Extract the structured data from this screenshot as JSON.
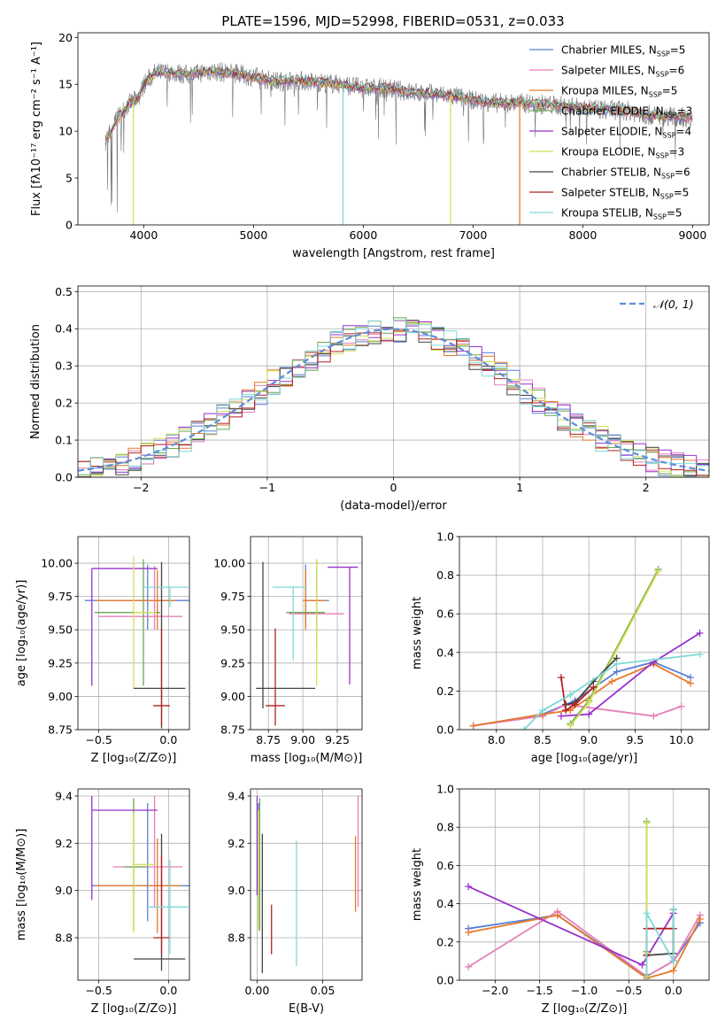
{
  "chart_data": [
    {
      "id": "spectrum",
      "type": "line",
      "title": "PLATE=1596, MJD=52998, FIBERID=0531, z=0.033",
      "xlabel": "wavelength [Angstrom, rest frame]",
      "ylabel": "Flux [fλ10⁻¹⁷ erg cm⁻² s⁻¹ A⁻¹]",
      "xlim": [
        3400,
        9150
      ],
      "ylim": [
        0,
        20.5
      ],
      "xticks": [
        4000,
        5000,
        6000,
        7000,
        8000,
        9000
      ],
      "yticks": [
        0,
        5,
        10,
        15,
        20
      ],
      "grid": false,
      "legend_position": "top-right",
      "legend": [
        {
          "main": "Chabrier MILES, N",
          "sub": "SSP",
          "tail": "=5",
          "color": "#5b7fd4"
        },
        {
          "main": "Salpeter MILES, N",
          "sub": "SSP",
          "tail": "=6",
          "color": "#e67fb9"
        },
        {
          "main": "Kroupa MILES, N",
          "sub": "SSP",
          "tail": "=5",
          "color": "#e67a2c"
        },
        {
          "main": "Chabrier ELODIE, N",
          "sub": "SSP",
          "tail": "=3",
          "color": "#6aa84f"
        },
        {
          "main": "Salpeter ELODIE, N",
          "sub": "SSP",
          "tail": "=4",
          "color": "#9932cc"
        },
        {
          "main": "Kroupa ELODIE, N",
          "sub": "SSP",
          "tail": "=3",
          "color": "#d4e157"
        },
        {
          "main": "Chabrier STELIB, N",
          "sub": "SSP",
          "tail": "=6",
          "color": "#444444"
        },
        {
          "main": "Salpeter STELIB, N",
          "sub": "SSP",
          "tail": "=5",
          "color": "#b22222"
        },
        {
          "main": "Kroupa STELIB, N",
          "sub": "SSP",
          "tail": "=5",
          "color": "#7fd8d8"
        }
      ],
      "continuum": [
        [
          3650,
          9.0
        ],
        [
          3750,
          11.2
        ],
        [
          3850,
          12.8
        ],
        [
          3950,
          13.5
        ],
        [
          4000,
          15.0
        ],
        [
          4100,
          16.2
        ],
        [
          4250,
          16.3
        ],
        [
          4400,
          16.0
        ],
        [
          4600,
          16.4
        ],
        [
          4800,
          16.2
        ],
        [
          5000,
          15.8
        ],
        [
          5200,
          15.3
        ],
        [
          5400,
          15.4
        ],
        [
          5600,
          15.2
        ],
        [
          5800,
          15.0
        ],
        [
          6000,
          14.6
        ],
        [
          6200,
          14.6
        ],
        [
          6400,
          14.2
        ],
        [
          6600,
          14.0
        ],
        [
          6800,
          13.8
        ],
        [
          7000,
          13.3
        ],
        [
          7200,
          13.0
        ],
        [
          7400,
          13.0
        ],
        [
          7600,
          12.9
        ],
        [
          7800,
          12.7
        ],
        [
          8000,
          12.5
        ],
        [
          8200,
          12.3
        ],
        [
          8400,
          12.2
        ],
        [
          8600,
          11.7
        ],
        [
          8800,
          11.6
        ],
        [
          9000,
          11.4
        ]
      ],
      "dropouts": [
        {
          "x": 3905,
          "color": "#d4e157"
        },
        {
          "x": 5815,
          "color": "#7fd8d8"
        },
        {
          "x": 6795,
          "color": "#d4e157"
        },
        {
          "x": 7425,
          "color": "#e67a2c"
        }
      ]
    },
    {
      "id": "residuals",
      "type": "step",
      "xlabel": "(data-model)/error",
      "ylabel": "Normed distribution",
      "xlim": [
        -2.5,
        2.5
      ],
      "ylim": [
        0,
        0.515
      ],
      "xticks": [
        -2,
        -1,
        0,
        1,
        2
      ],
      "yticks": [
        0.0,
        0.1,
        0.2,
        0.3,
        0.4,
        0.5
      ],
      "grid": true,
      "legend_position": "top-right",
      "legend": [
        {
          "label": "𝒩(0, 1)",
          "color": "#5b8fd8"
        }
      ],
      "bin_width": 0.1
    },
    {
      "id": "age_vs_Z",
      "type": "errorbar",
      "xlabel": "Z [log₁₀(Z/Z⊙)]",
      "ylabel": "age  [log₁₀(age/yr)]",
      "xlim": [
        -0.65,
        0.15
      ],
      "ylim": [
        8.75,
        10.2
      ],
      "xticks": [
        -0.5,
        0.0
      ],
      "yticks": [
        8.75,
        9.0,
        9.25,
        9.5,
        9.75,
        10.0
      ],
      "grid": true,
      "points": [
        {
          "x": -0.15,
          "y": 9.72,
          "xerr": [
            0.45,
            0.37
          ],
          "yerr": [
            0.22,
            0.27
          ],
          "color": "#5b7fd4"
        },
        {
          "x": -0.1,
          "y": 9.6,
          "xerr": [
            0.4,
            0.2
          ],
          "yerr": [
            0.1,
            0.38
          ],
          "color": "#e67fb9"
        },
        {
          "x": -0.08,
          "y": 9.72,
          "xerr": [
            0.44,
            0.13
          ],
          "yerr": [
            0.22,
            0.23
          ],
          "color": "#e67a2c"
        },
        {
          "x": -0.18,
          "y": 9.63,
          "xerr": [
            0.35,
            0.12
          ],
          "yerr": [
            0.55,
            0.4
          ],
          "color": "#6aa84f"
        },
        {
          "x": -0.55,
          "y": 9.96,
          "xerr": [
            0.0,
            0.47
          ],
          "yerr": [
            0.88,
            0.0
          ],
          "color": "#9932cc"
        },
        {
          "x": -0.25,
          "y": 9.63,
          "xerr": [
            0.0,
            0.16
          ],
          "yerr": [
            0.57,
            0.42
          ],
          "color": "#d4e157"
        },
        {
          "x": -0.05,
          "y": 9.06,
          "xerr": [
            0.2,
            0.17
          ],
          "yerr": [
            0.3,
            0.95
          ],
          "color": "#444444"
        },
        {
          "x": -0.05,
          "y": 8.93,
          "xerr": [
            0.06,
            0.06
          ],
          "yerr": [
            0.15,
            0.58
          ],
          "color": "#b22222"
        },
        {
          "x": 0.01,
          "y": 9.82,
          "xerr": [
            0.2,
            0.13
          ],
          "yerr": [
            0.15,
            0.0
          ],
          "color": "#7fd8d8"
        }
      ]
    },
    {
      "id": "age_vs_mass",
      "type": "errorbar",
      "xlabel": "mass [log₁₀(M/M⊙)]",
      "ylabel": "",
      "xlim": [
        8.62,
        9.43
      ],
      "ylim": [
        8.75,
        10.2
      ],
      "xticks": [
        8.75,
        9.0,
        9.25
      ],
      "yticks": [
        8.75,
        9.0,
        9.25,
        9.5,
        9.75,
        10.0
      ],
      "grid": true,
      "points": [
        {
          "x": 9.02,
          "y": 9.72,
          "xerr": [
            0.0,
            0.17
          ],
          "yerr": [
            0.2,
            0.27
          ],
          "color": "#5b7fd4"
        },
        {
          "x": 9.1,
          "y": 9.62,
          "xerr": [
            0.2,
            0.2
          ],
          "yerr": [
            0.12,
            0.4
          ],
          "color": "#e67fb9"
        },
        {
          "x": 9.02,
          "y": 9.72,
          "xerr": [
            0.02,
            0.15
          ],
          "yerr": [
            0.22,
            0.23
          ],
          "color": "#e67a2c"
        },
        {
          "x": 9.1,
          "y": 9.63,
          "xerr": [
            0.22,
            0.06
          ],
          "yerr": [
            0.3,
            0.4
          ],
          "color": "#6aa84f"
        },
        {
          "x": 9.34,
          "y": 9.97,
          "xerr": [
            0.16,
            0.06
          ],
          "yerr": [
            0.88,
            0.0
          ],
          "color": "#9932cc"
        },
        {
          "x": 9.1,
          "y": 9.63,
          "xerr": [
            0.0,
            0.0
          ],
          "yerr": [
            0.55,
            0.4
          ],
          "color": "#d4e157"
        },
        {
          "x": 8.71,
          "y": 9.06,
          "xerr": [
            0.05,
            0.38
          ],
          "yerr": [
            0.15,
            0.95
          ],
          "color": "#444444"
        },
        {
          "x": 8.8,
          "y": 8.93,
          "xerr": [
            0.07,
            0.07
          ],
          "yerr": [
            0.15,
            0.58
          ],
          "color": "#b22222"
        },
        {
          "x": 8.93,
          "y": 9.82,
          "xerr": [
            0.15,
            0.1
          ],
          "yerr": [
            0.55,
            0.0
          ],
          "color": "#7fd8d8"
        }
      ]
    },
    {
      "id": "weight_vs_age",
      "type": "line",
      "xlabel": "age  [log₁₀(age/yr)]",
      "ylabel": "mass weight",
      "xlim": [
        7.6,
        10.3
      ],
      "ylim": [
        0,
        1.0
      ],
      "xticks": [
        8.0,
        8.5,
        9.0,
        9.5,
        10.0
      ],
      "yticks": [
        0.0,
        0.2,
        0.4,
        0.6,
        0.8,
        1.0
      ],
      "grid": true,
      "series": [
        {
          "color": "#5b7fd4",
          "x": [
            7.75,
            8.5,
            8.85,
            9.3,
            9.7,
            10.1
          ],
          "y": [
            0.02,
            0.08,
            0.15,
            0.3,
            0.35,
            0.27
          ]
        },
        {
          "color": "#e67fb9",
          "x": [
            7.75,
            8.5,
            8.75,
            9.7,
            10.0
          ],
          "y": [
            0.02,
            0.07,
            0.13,
            0.07,
            0.12
          ]
        },
        {
          "color": "#e67a2c",
          "x": [
            7.75,
            8.5,
            8.8,
            9.25,
            9.7,
            10.1
          ],
          "y": [
            0.02,
            0.08,
            0.1,
            0.25,
            0.34,
            0.24
          ]
        },
        {
          "color": "#6aa84f",
          "x": [
            8.8,
            9.0,
            9.75
          ],
          "y": [
            0.03,
            0.15,
            0.83
          ]
        },
        {
          "color": "#9932cc",
          "x": [
            8.7,
            9.0,
            9.7,
            10.2
          ],
          "y": [
            0.07,
            0.08,
            0.35,
            0.5
          ]
        },
        {
          "color": "#d4e157",
          "x": [
            8.8,
            9.0,
            9.75
          ],
          "y": [
            0.02,
            0.14,
            0.82
          ]
        },
        {
          "color": "#444444",
          "x": [
            8.75,
            8.85,
            9.05,
            9.3
          ],
          "y": [
            0.13,
            0.14,
            0.25,
            0.37
          ]
        },
        {
          "color": "#b22222",
          "x": [
            8.7,
            8.75,
            8.85,
            9.05
          ],
          "y": [
            0.27,
            0.1,
            0.13,
            0.22
          ]
        },
        {
          "color": "#7fd8d8",
          "x": [
            8.3,
            8.5,
            8.8,
            9.3,
            10.2
          ],
          "y": [
            0.0,
            0.1,
            0.18,
            0.34,
            0.39
          ]
        }
      ]
    },
    {
      "id": "mass_vs_Z",
      "type": "errorbar",
      "xlabel": "Z [log₁₀(Z/Z⊙)]",
      "ylabel": "mass [log₁₀(M/M⊙)]",
      "xlim": [
        -0.65,
        0.15
      ],
      "ylim": [
        8.62,
        9.43
      ],
      "xticks": [
        -0.5,
        0.0
      ],
      "yticks": [
        8.8,
        9.0,
        9.2,
        9.4
      ],
      "grid": true,
      "points": [
        {
          "x": -0.15,
          "y": 9.02,
          "xerr": [
            0.4,
            0.3
          ],
          "yerr": [
            0.15,
            0.35
          ],
          "color": "#5b7fd4"
        },
        {
          "x": -0.1,
          "y": 9.1,
          "xerr": [
            0.3,
            0.2
          ],
          "yerr": [
            0.17,
            0.3
          ],
          "color": "#e67fb9"
        },
        {
          "x": -0.08,
          "y": 9.02,
          "xerr": [
            0.44,
            0.17
          ],
          "yerr": [
            0.2,
            0.2
          ],
          "color": "#e67a2c"
        },
        {
          "x": -0.25,
          "y": 9.1,
          "xerr": [
            0.07,
            0.1
          ],
          "yerr": [
            0.27,
            0.29
          ],
          "color": "#6aa84f"
        },
        {
          "x": -0.55,
          "y": 9.34,
          "xerr": [
            0.0,
            0.47
          ],
          "yerr": [
            0.38,
            0.06
          ],
          "color": "#9932cc"
        },
        {
          "x": -0.25,
          "y": 9.11,
          "xerr": [
            0.0,
            0.16
          ],
          "yerr": [
            0.29,
            0.22
          ],
          "color": "#d4e157"
        },
        {
          "x": -0.05,
          "y": 8.71,
          "xerr": [
            0.2,
            0.17
          ],
          "yerr": [
            0.05,
            0.53
          ],
          "color": "#444444"
        },
        {
          "x": -0.05,
          "y": 8.8,
          "xerr": [
            0.06,
            0.06
          ],
          "yerr": [
            0.07,
            0.35
          ],
          "color": "#b22222"
        },
        {
          "x": 0.01,
          "y": 8.93,
          "xerr": [
            0.16,
            0.13
          ],
          "yerr": [
            0.2,
            0.2
          ],
          "color": "#7fd8d8"
        }
      ]
    },
    {
      "id": "mass_vs_EBV",
      "type": "errorbar",
      "xlabel": "E(B-V)",
      "ylabel": "",
      "xlim": [
        -0.005,
        0.08
      ],
      "ylim": [
        8.62,
        9.43
      ],
      "xticks": [
        0.0,
        0.05
      ],
      "yticks": [
        8.8,
        9.0,
        9.2,
        9.4
      ],
      "grid": true,
      "points": [
        {
          "x": 0.001,
          "y": 9.02,
          "xerr": [
            0,
            0
          ],
          "yerr": [
            0.15,
            0.35
          ],
          "color": "#5b7fd4"
        },
        {
          "x": 0.077,
          "y": 9.1,
          "xerr": [
            0,
            0
          ],
          "yerr": [
            0.17,
            0.3
          ],
          "color": "#e67fb9"
        },
        {
          "x": 0.075,
          "y": 9.02,
          "xerr": [
            0,
            0
          ],
          "yerr": [
            0.11,
            0.21
          ],
          "color": "#e67a2c"
        },
        {
          "x": 0.002,
          "y": 9.1,
          "xerr": [
            0,
            0
          ],
          "yerr": [
            0.27,
            0.29
          ],
          "color": "#6aa84f"
        },
        {
          "x": 0.0,
          "y": 9.34,
          "xerr": [
            0,
            0
          ],
          "yerr": [
            0.36,
            0.06
          ],
          "color": "#9932cc"
        },
        {
          "x": 0.001,
          "y": 9.1,
          "xerr": [
            0,
            0
          ],
          "yerr": [
            0.27,
            0.24
          ],
          "color": "#d4e157"
        },
        {
          "x": 0.004,
          "y": 8.95,
          "xerr": [
            0,
            0
          ],
          "yerr": [
            0.3,
            0.29
          ],
          "color": "#444444"
        },
        {
          "x": 0.011,
          "y": 8.83,
          "xerr": [
            0,
            0
          ],
          "yerr": [
            0.1,
            0.11
          ],
          "color": "#b22222"
        },
        {
          "x": 0.03,
          "y": 8.95,
          "xerr": [
            0,
            0
          ],
          "yerr": [
            0.27,
            0.26
          ],
          "color": "#7fd8d8"
        }
      ]
    },
    {
      "id": "weight_vs_Z",
      "type": "line",
      "xlabel": "Z [log₁₀(Z/Z⊙)]",
      "ylabel": "mass weight",
      "xlim": [
        -2.4,
        0.4
      ],
      "ylim": [
        0,
        1.0
      ],
      "xticks": [
        -2.0,
        -1.5,
        -1.0,
        -0.5,
        0.0
      ],
      "yticks": [
        0.0,
        0.2,
        0.4,
        0.6,
        0.8,
        1.0
      ],
      "grid": true,
      "series": [
        {
          "color": "#5b7fd4",
          "x": [
            -2.3,
            -1.3,
            -0.3,
            0.0,
            0.3
          ],
          "y": [
            0.27,
            0.34,
            0.02,
            0.1,
            0.3
          ]
        },
        {
          "color": "#e67fb9",
          "x": [
            -2.3,
            -1.3,
            -0.3,
            0.0,
            0.3
          ],
          "y": [
            0.07,
            0.36,
            0.02,
            0.1,
            0.34
          ]
        },
        {
          "color": "#e67a2c",
          "x": [
            -2.3,
            -1.3,
            -0.3,
            0.0,
            0.3
          ],
          "y": [
            0.25,
            0.34,
            0.01,
            0.05,
            0.32
          ]
        },
        {
          "color": "#6aa84f",
          "x": [
            -0.3,
            -0.3,
            -0.3
          ],
          "y": [
            0.03,
            0.15,
            0.83
          ]
        },
        {
          "color": "#9932cc",
          "x": [
            -2.3,
            -0.35,
            0.0
          ],
          "y": [
            0.49,
            0.08,
            0.35
          ]
        },
        {
          "color": "#d4e157",
          "x": [
            -0.3,
            -0.3,
            -0.3
          ],
          "y": [
            0.02,
            0.14,
            0.82
          ]
        },
        {
          "color": "#444444",
          "x": [
            -0.3,
            0.0,
            0.0
          ],
          "y": [
            0.13,
            0.14,
            0.37
          ]
        },
        {
          "color": "#b22222",
          "x": [
            -0.3,
            -0.3,
            0.0,
            0.0
          ],
          "y": [
            0.13,
            0.27,
            0.27,
            0.1
          ]
        },
        {
          "color": "#7fd8d8",
          "x": [
            -0.3,
            -0.3,
            0.0,
            0.0
          ],
          "y": [
            0.0,
            0.35,
            0.1,
            0.37
          ]
        }
      ]
    }
  ]
}
